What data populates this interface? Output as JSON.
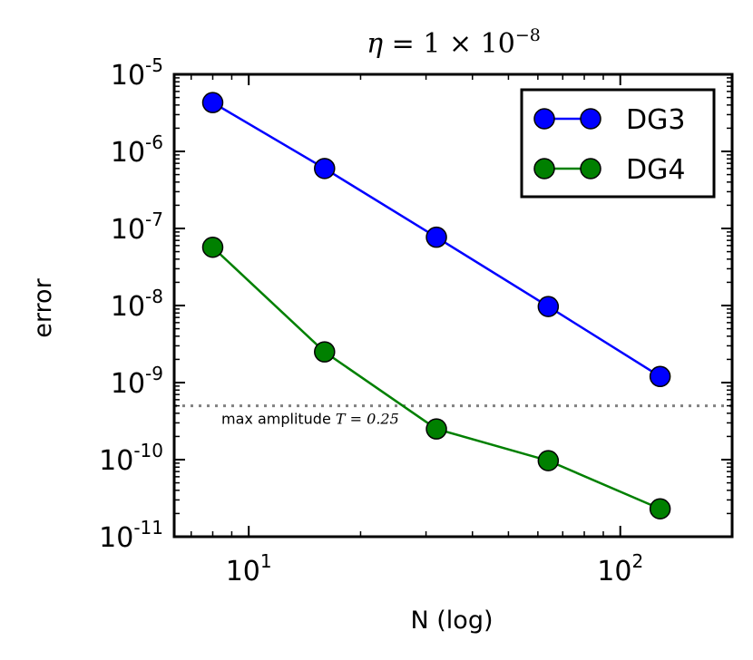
{
  "chart_data": {
    "type": "line",
    "title": "η = 1 × 10⁻⁸",
    "title_parts": {
      "eta": "η",
      "eq": " = 1 × 10",
      "exp": "−8"
    },
    "xlabel": "N (log)",
    "ylabel": "error",
    "xscale": "log",
    "yscale": "log",
    "xlim": [
      6.3,
      200
    ],
    "ylim": [
      1e-11,
      1e-05
    ],
    "x": [
      8,
      16,
      32,
      64,
      128
    ],
    "series": [
      {
        "name": "DG3",
        "color": "#0000ff",
        "values": [
          4.3e-06,
          6e-07,
          7.7e-08,
          9.7e-09,
          1.2e-09
        ]
      },
      {
        "name": "DG4",
        "color": "#008000",
        "values": [
          5.7e-08,
          2.5e-09,
          2.5e-10,
          9.7e-11,
          2.3e-11
        ]
      }
    ],
    "x_ticks": [
      {
        "value": 10,
        "base": "10",
        "exp": "1"
      },
      {
        "value": 100,
        "base": "10",
        "exp": "2"
      }
    ],
    "y_ticks": [
      {
        "value": 1e-05,
        "base": "10",
        "exp": "-5"
      },
      {
        "value": 1e-06,
        "base": "10",
        "exp": "-6"
      },
      {
        "value": 1e-07,
        "base": "10",
        "exp": "-7"
      },
      {
        "value": 1e-08,
        "base": "10",
        "exp": "-8"
      },
      {
        "value": 1e-09,
        "base": "10",
        "exp": "-9"
      },
      {
        "value": 1e-10,
        "base": "10",
        "exp": "-10"
      },
      {
        "value": 1e-11,
        "base": "10",
        "exp": "-11"
      }
    ],
    "reference_line": {
      "value": 5e-10,
      "style": "dotted",
      "color": "#808080",
      "label_text": "max amplitude ",
      "label_math": "T = 0.25"
    },
    "legend": {
      "placement": "top-right"
    },
    "grid": false
  }
}
